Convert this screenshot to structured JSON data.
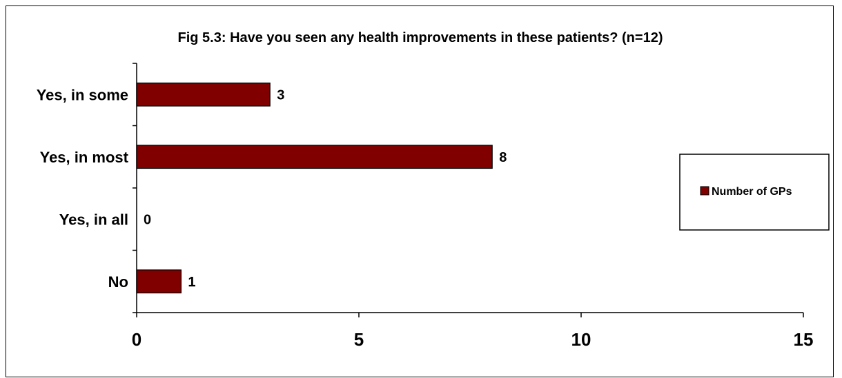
{
  "chart_data": {
    "type": "bar",
    "orientation": "horizontal",
    "title": "Fig 5.3: Have you seen any health improvements in these patients?  (n=12)",
    "categories": [
      "Yes, in some",
      "Yes, in most",
      "Yes, in all",
      "No"
    ],
    "series": [
      {
        "name": "Number of GPs",
        "values": [
          3,
          8,
          0,
          1
        ],
        "color": "#800000"
      }
    ],
    "xlim": [
      0,
      15
    ],
    "xticks": [
      0,
      5,
      10,
      15
    ],
    "data_labels": true,
    "grid": false,
    "legend_position": "right",
    "xlabel": "",
    "ylabel": ""
  }
}
